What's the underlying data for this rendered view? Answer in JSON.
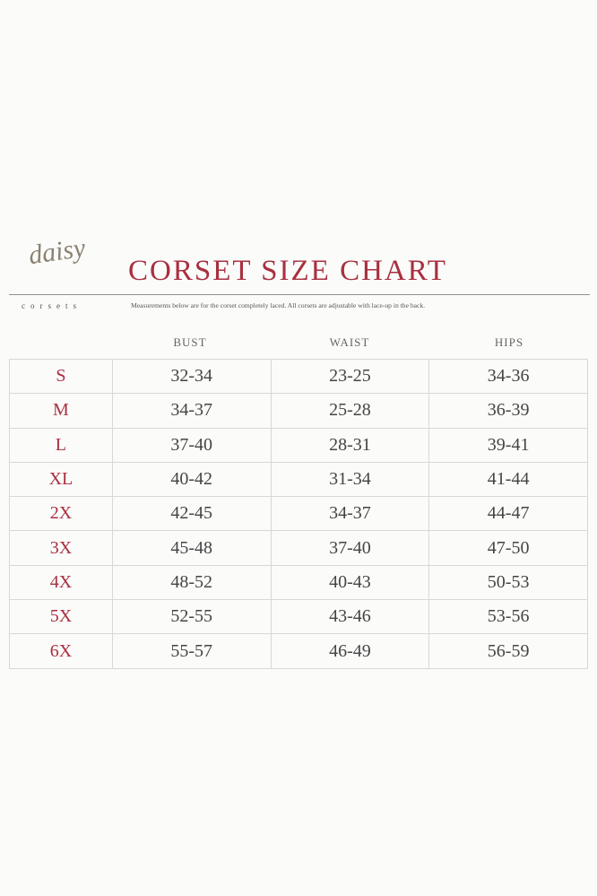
{
  "logo": {
    "script": "daisy",
    "sub": "corsets"
  },
  "title": "CORSET SIZE CHART",
  "note": "Measurements below are for the corset completely laced.  All corsets are adjustable with lace-up in the back.",
  "columns": [
    "BUST",
    "WAIST",
    "HIPS"
  ],
  "rows": [
    {
      "size": "S",
      "bust": "32-34",
      "waist": "23-25",
      "hips": "34-36"
    },
    {
      "size": "M",
      "bust": "34-37",
      "waist": "25-28",
      "hips": "36-39"
    },
    {
      "size": "L",
      "bust": "37-40",
      "waist": "28-31",
      "hips": "39-41"
    },
    {
      "size": "XL",
      "bust": "40-42",
      "waist": "31-34",
      "hips": "41-44"
    },
    {
      "size": "2X",
      "bust": "42-45",
      "waist": "34-37",
      "hips": "44-47"
    },
    {
      "size": "3X",
      "bust": "45-48",
      "waist": "37-40",
      "hips": "47-50"
    },
    {
      "size": "4X",
      "bust": "48-52",
      "waist": "40-43",
      "hips": "50-53"
    },
    {
      "size": "5X",
      "bust": "52-55",
      "waist": "43-46",
      "hips": "53-56"
    },
    {
      "size": "6X",
      "bust": "55-57",
      "waist": "46-49",
      "hips": "56-59"
    }
  ],
  "colors": {
    "accent": "#a8303f",
    "text": "#444444"
  }
}
